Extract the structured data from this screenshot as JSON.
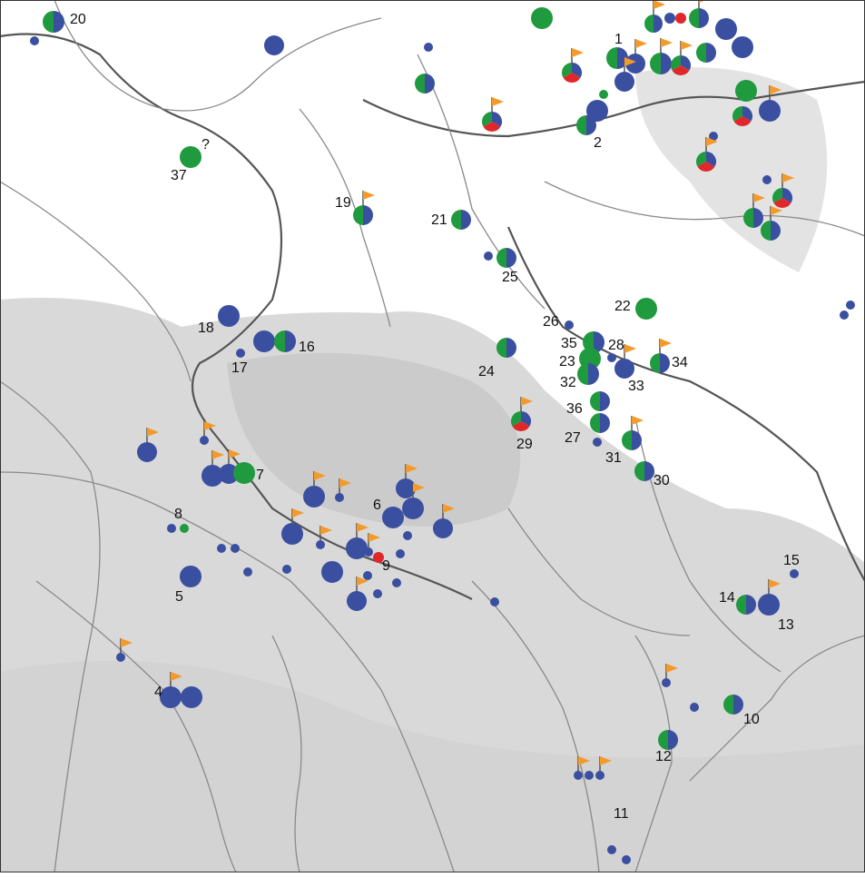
{
  "labels": [
    "20",
    "1",
    "2",
    "?",
    "37",
    "19",
    "21",
    "25",
    "22",
    "26",
    "35",
    "28",
    "18",
    "16",
    "17",
    "24",
    "23",
    "32",
    "33",
    "34",
    "36",
    "29",
    "27",
    "31",
    "30",
    "7",
    "8",
    "6",
    "9",
    "5",
    "15",
    "14",
    "13",
    "4",
    "10",
    "12",
    "11"
  ]
}
